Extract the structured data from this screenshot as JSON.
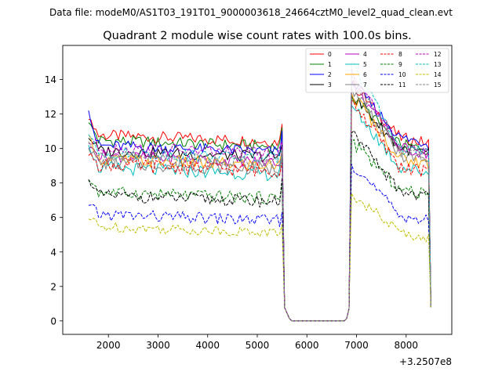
{
  "chart_data": {
    "type": "line",
    "suptitle": "Data file: modeM0/AS1T03_191T01_9000003618_24664cztM0_level2_quad_clean.evt",
    "title": "Quadrant 2 module wise count rates with 100.0s bins.",
    "xlabel": "",
    "ylabel": "",
    "offset_label": "+3.2507e8",
    "xlim": [
      1080,
      8920
    ],
    "ylim": [
      -0.78,
      15.98
    ],
    "xticks": [
      2000,
      3000,
      4000,
      5000,
      6000,
      7000,
      8000
    ],
    "yticks": [
      0,
      2,
      4,
      6,
      8,
      10,
      12,
      14
    ],
    "legend_position": "upper right",
    "legend_columns": 4,
    "segments": [
      {
        "x_start": 1600,
        "x_end": 5500,
        "step": 50
      },
      {
        "x_start": 6900,
        "x_end": 8450,
        "step": 50
      }
    ],
    "gap_points": [
      [
        5550,
        0.78
      ],
      [
        5650,
        0.13
      ],
      [
        5700,
        0
      ],
      [
        5800,
        0
      ],
      [
        6000,
        0
      ],
      [
        6200,
        0
      ],
      [
        6400,
        0
      ],
      [
        6600,
        0
      ],
      [
        6750,
        0
      ],
      [
        6800,
        0.13
      ],
      [
        6850,
        0.72
      ]
    ],
    "drop_y": 0.8,
    "series": [
      {
        "name": "0",
        "color": "#ff0000",
        "dash": "solid",
        "base": 10.6,
        "amp": 0.35,
        "start": 11.7,
        "end": 11.4,
        "peak": 13.8,
        "ref": 11.2
      },
      {
        "name": "1",
        "color": "#008000",
        "dash": "solid",
        "base": 10.3,
        "amp": 0.35,
        "start": 11.5,
        "end": 11.2,
        "peak": 13.1,
        "ref": 10.8
      },
      {
        "name": "2",
        "color": "#0000ff",
        "dash": "solid",
        "base": 10.0,
        "amp": 0.35,
        "start": 12.2,
        "end": 11.0,
        "peak": 13.9,
        "ref": 11.2
      },
      {
        "name": "3",
        "color": "#000000",
        "dash": "solid",
        "base": 9.7,
        "amp": 0.35,
        "start": 10.6,
        "end": 10.2,
        "peak": 13.1,
        "ref": 10.6
      },
      {
        "name": "4",
        "color": "#bf00bf",
        "dash": "solid",
        "base": 9.4,
        "amp": 0.35,
        "start": 10.0,
        "end": 10.0,
        "peak": 13.9,
        "ref": 10.6
      },
      {
        "name": "5",
        "color": "#00bfbf",
        "dash": "solid",
        "base": 8.7,
        "amp": 0.4,
        "start": 10.2,
        "end": 9.8,
        "peak": 12.5,
        "ref": 9.5
      },
      {
        "name": "6",
        "color": "#ffa500",
        "dash": "solid",
        "base": 9.2,
        "amp": 0.4,
        "start": 10.8,
        "end": 9.8,
        "peak": 13.2,
        "ref": 10.0
      },
      {
        "name": "7",
        "color": "#808080",
        "dash": "solid",
        "base": 9.0,
        "amp": 0.4,
        "start": 10.0,
        "end": 9.6,
        "peak": 13.6,
        "ref": 10.2
      },
      {
        "name": "8",
        "color": "#ff0000",
        "dash": "dashed",
        "base": 8.9,
        "amp": 0.4,
        "start": 9.6,
        "end": 9.2,
        "peak": 12.8,
        "ref": 9.5
      },
      {
        "name": "9",
        "color": "#008000",
        "dash": "dashed",
        "base": 7.3,
        "amp": 0.35,
        "start": 8.2,
        "end": 8.0,
        "peak": 10.4,
        "ref": 8.2
      },
      {
        "name": "10",
        "color": "#0000ff",
        "dash": "dashed",
        "base": 6.0,
        "amp": 0.35,
        "start": 6.7,
        "end": 6.3,
        "peak": 9.1,
        "ref": 6.7
      },
      {
        "name": "11",
        "color": "#000000",
        "dash": "dashed",
        "base": 7.1,
        "amp": 0.35,
        "start": 8.2,
        "end": 8.3,
        "peak": 10.9,
        "ref": 8.1
      },
      {
        "name": "12",
        "color": "#bf00bf",
        "dash": "dashed",
        "base": 9.9,
        "amp": 0.35,
        "start": 10.3,
        "end": 10.4,
        "peak": 14.6,
        "ref": 10.6
      },
      {
        "name": "13",
        "color": "#00bfbf",
        "dash": "dashed",
        "base": 9.6,
        "amp": 0.35,
        "start": 10.8,
        "end": 9.9,
        "peak": 15.0,
        "ref": 10.6
      },
      {
        "name": "14",
        "color": "#bfbf00",
        "dash": "dashed",
        "base": 5.3,
        "amp": 0.3,
        "start": 5.9,
        "end": 5.6,
        "peak": 7.4,
        "ref": 5.7
      },
      {
        "name": "15",
        "color": "#808080",
        "dash": "dashed",
        "base": 9.4,
        "amp": 0.35,
        "start": 10.4,
        "end": 9.9,
        "peak": 14.2,
        "ref": 10.4
      }
    ]
  }
}
